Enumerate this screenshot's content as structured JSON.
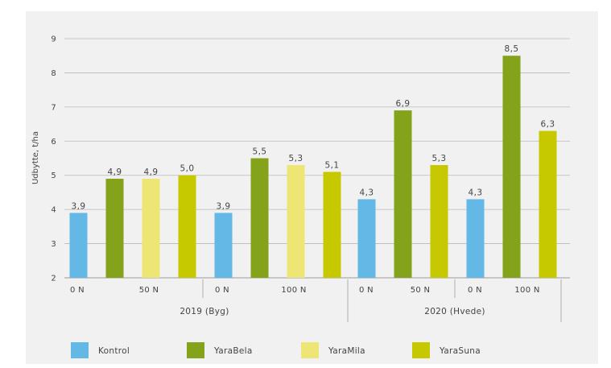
{
  "chart_data": {
    "type": "bar",
    "title": "",
    "ylabel": "Udbytte, t/ha",
    "ylim": [
      2,
      9
    ],
    "yticks": [
      2,
      3,
      4,
      5,
      6,
      7,
      8,
      9
    ],
    "grid": true,
    "legend_position": "bottom",
    "series": [
      {
        "name": "Kontrol",
        "color": "#63b8e6"
      },
      {
        "name": "YaraBela",
        "color": "#84a21a"
      },
      {
        "name": "YaraMila",
        "color": "#ede574"
      },
      {
        "name": "YaraSuna",
        "color": "#c6c900"
      }
    ],
    "groups": [
      {
        "year_label": "2019 (Byg)",
        "treatments": [
          {
            "label": "0 N",
            "bars": [
              {
                "series": "Kontrol",
                "value": 3.9,
                "label": "3,9"
              }
            ]
          },
          {
            "label": "50 N",
            "bars": [
              {
                "series": "YaraBela",
                "value": 4.9,
                "label": "4,9"
              },
              {
                "series": "YaraMila",
                "value": 4.9,
                "label": "4,9"
              },
              {
                "series": "YaraSuna",
                "value": 5.0,
                "label": "5,0"
              }
            ]
          },
          {
            "label": "0 N",
            "bars": [
              {
                "series": "Kontrol",
                "value": 3.9,
                "label": "3,9"
              }
            ]
          },
          {
            "label": "100 N",
            "bars": [
              {
                "series": "YaraBela",
                "value": 5.5,
                "label": "5,5"
              },
              {
                "series": "YaraMila",
                "value": 5.3,
                "label": "5,3"
              },
              {
                "series": "YaraSuna",
                "value": 5.1,
                "label": "5,1"
              }
            ]
          }
        ]
      },
      {
        "year_label": "2020 (Hvede)",
        "treatments": [
          {
            "label": "0 N",
            "bars": [
              {
                "series": "Kontrol",
                "value": 4.3,
                "label": "4,3"
              }
            ]
          },
          {
            "label": "50 N",
            "bars": [
              {
                "series": "YaraBela",
                "value": 6.9,
                "label": "6,9"
              },
              {
                "series": "YaraSuna",
                "value": 5.3,
                "label": "5,3"
              }
            ]
          },
          {
            "label": "0 N",
            "bars": [
              {
                "series": "Kontrol",
                "value": 4.3,
                "label": "4,3"
              }
            ]
          },
          {
            "label": "100 N",
            "bars": [
              {
                "series": "YaraBela",
                "value": 8.5,
                "label": "8,5"
              },
              {
                "series": "YaraSuna",
                "value": 6.3,
                "label": "6,3"
              }
            ]
          }
        ]
      }
    ]
  }
}
